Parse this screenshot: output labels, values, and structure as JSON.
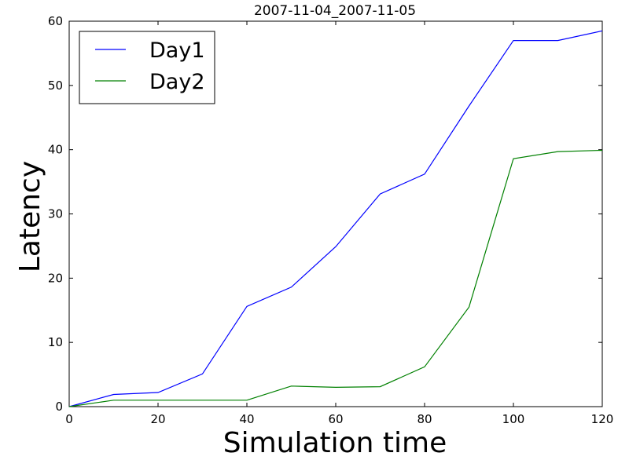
{
  "chart_data": {
    "type": "line",
    "title": "2007-11-04_2007-11-05",
    "xlabel": "Simulation time",
    "ylabel": "Latency",
    "x": [
      0,
      10,
      20,
      30,
      40,
      50,
      60,
      70,
      80,
      90,
      100,
      110,
      120
    ],
    "xlim": [
      0,
      120
    ],
    "ylim": [
      0,
      60
    ],
    "xticks": [
      0,
      20,
      40,
      60,
      80,
      100,
      120
    ],
    "yticks": [
      0,
      10,
      20,
      30,
      40,
      50,
      60
    ],
    "grid": false,
    "legend_position": "top-left",
    "series": [
      {
        "name": "Day1",
        "color": "#0000ff",
        "values": [
          0,
          1.9,
          2.2,
          5.1,
          15.6,
          18.6,
          24.9,
          33.1,
          36.2,
          46.8,
          57.0,
          57.0,
          58.5
        ]
      },
      {
        "name": "Day2",
        "color": "#008000",
        "values": [
          0,
          1.0,
          1.0,
          1.0,
          1.0,
          3.2,
          3.0,
          3.1,
          6.2,
          15.5,
          38.6,
          39.7,
          39.9
        ]
      }
    ]
  }
}
